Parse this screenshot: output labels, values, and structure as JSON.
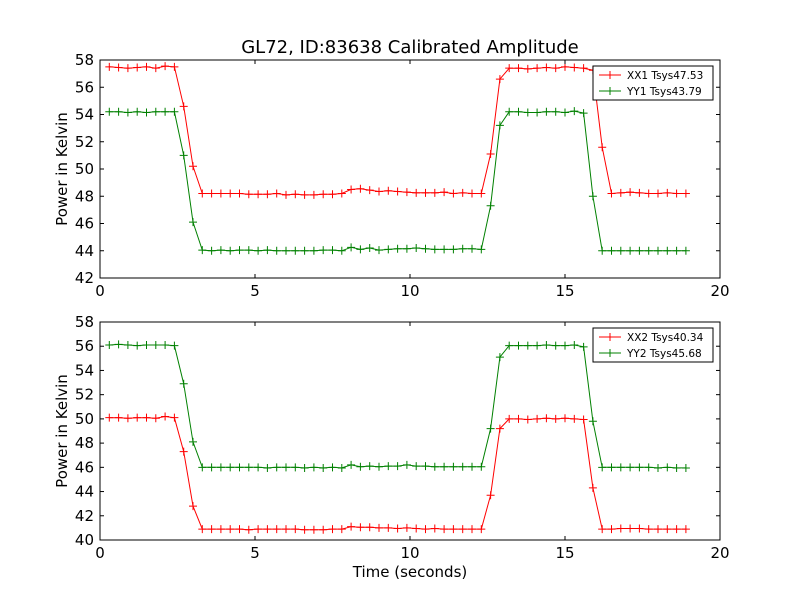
{
  "figure": {
    "title": "GL72, ID:83638 Calibrated Amplitude",
    "xlabel": "Time (seconds)"
  },
  "chart_data": [
    {
      "type": "line",
      "title": "GL72, ID:83638 Calibrated Amplitude",
      "xlabel": "",
      "ylabel": "Power in Kelvin",
      "xlim": [
        0,
        20
      ],
      "ylim": [
        42,
        58
      ],
      "xticks": [
        0,
        5,
        10,
        15,
        20
      ],
      "yticks": [
        42,
        44,
        46,
        48,
        50,
        52,
        54,
        56,
        58
      ],
      "grid": false,
      "legend_position": "top-right",
      "x": [
        0.3,
        0.6,
        0.9,
        1.2,
        1.5,
        1.8,
        2.1,
        2.4,
        2.7,
        3.0,
        3.3,
        3.6,
        3.9,
        4.2,
        4.5,
        4.8,
        5.1,
        5.4,
        5.7,
        6.0,
        6.3,
        6.6,
        6.9,
        7.2,
        7.5,
        7.8,
        8.1,
        8.4,
        8.7,
        9.0,
        9.3,
        9.6,
        9.9,
        10.2,
        10.5,
        10.8,
        11.1,
        11.4,
        11.7,
        12.0,
        12.3,
        12.6,
        12.9,
        13.2,
        13.5,
        13.8,
        14.1,
        14.4,
        14.7,
        15.0,
        15.3,
        15.6,
        15.9,
        16.2,
        16.5,
        16.8,
        17.1,
        17.4,
        17.7,
        18.0,
        18.3,
        18.6,
        18.9
      ],
      "series": [
        {
          "name": "XX1 Tsys47.53",
          "color": "#ff0000",
          "values": [
            57.5,
            57.45,
            57.4,
            57.45,
            57.5,
            57.4,
            57.55,
            57.5,
            54.6,
            50.2,
            48.2,
            48.2,
            48.2,
            48.2,
            48.2,
            48.15,
            48.15,
            48.15,
            48.2,
            48.1,
            48.15,
            48.1,
            48.1,
            48.15,
            48.15,
            48.2,
            48.5,
            48.55,
            48.45,
            48.35,
            48.4,
            48.35,
            48.3,
            48.25,
            48.25,
            48.25,
            48.3,
            48.2,
            48.25,
            48.2,
            48.2,
            51.1,
            56.6,
            57.4,
            57.4,
            57.35,
            57.4,
            57.45,
            57.4,
            57.5,
            57.45,
            57.4,
            57.25,
            51.6,
            48.2,
            48.25,
            48.3,
            48.25,
            48.2,
            48.2,
            48.25,
            48.2,
            48.2
          ]
        },
        {
          "name": "YY1 Tsys43.79",
          "color": "#008000",
          "values": [
            54.2,
            54.2,
            54.15,
            54.2,
            54.15,
            54.2,
            54.2,
            54.2,
            51.0,
            46.1,
            44.05,
            44.0,
            44.05,
            44.0,
            44.05,
            44.05,
            44.0,
            44.05,
            44.0,
            44.0,
            44.0,
            44.0,
            44.0,
            44.05,
            44.05,
            44.0,
            44.25,
            44.1,
            44.2,
            44.05,
            44.1,
            44.15,
            44.15,
            44.2,
            44.15,
            44.1,
            44.1,
            44.1,
            44.15,
            44.15,
            44.1,
            47.3,
            53.2,
            54.2,
            54.2,
            54.15,
            54.15,
            54.2,
            54.2,
            54.15,
            54.25,
            54.1,
            48.0,
            44.0,
            44.0,
            44.0,
            44.0,
            44.0,
            44.0,
            44.0,
            44.0,
            44.0,
            44.0
          ]
        }
      ]
    },
    {
      "type": "line",
      "title": "",
      "xlabel": "Time (seconds)",
      "ylabel": "Power in Kelvin",
      "xlim": [
        0,
        20
      ],
      "ylim": [
        40,
        58
      ],
      "xticks": [
        0,
        5,
        10,
        15,
        20
      ],
      "yticks": [
        40,
        42,
        44,
        46,
        48,
        50,
        52,
        54,
        56,
        58
      ],
      "grid": false,
      "legend_position": "top-right",
      "x": [
        0.3,
        0.6,
        0.9,
        1.2,
        1.5,
        1.8,
        2.1,
        2.4,
        2.7,
        3.0,
        3.3,
        3.6,
        3.9,
        4.2,
        4.5,
        4.8,
        5.1,
        5.4,
        5.7,
        6.0,
        6.3,
        6.6,
        6.9,
        7.2,
        7.5,
        7.8,
        8.1,
        8.4,
        8.7,
        9.0,
        9.3,
        9.6,
        9.9,
        10.2,
        10.5,
        10.8,
        11.1,
        11.4,
        11.7,
        12.0,
        12.3,
        12.6,
        12.9,
        13.2,
        13.5,
        13.8,
        14.1,
        14.4,
        14.7,
        15.0,
        15.3,
        15.6,
        15.9,
        16.2,
        16.5,
        16.8,
        17.1,
        17.4,
        17.7,
        18.0,
        18.3,
        18.6,
        18.9
      ],
      "series": [
        {
          "name": "XX2 Tsys40.34",
          "color": "#ff0000",
          "values": [
            50.1,
            50.1,
            50.05,
            50.1,
            50.1,
            50.05,
            50.2,
            50.1,
            47.3,
            42.8,
            40.9,
            40.9,
            40.9,
            40.9,
            40.9,
            40.85,
            40.9,
            40.9,
            40.9,
            40.9,
            40.9,
            40.85,
            40.85,
            40.85,
            40.9,
            40.9,
            41.1,
            41.05,
            41.05,
            41.0,
            41.0,
            40.95,
            41.0,
            40.95,
            40.9,
            40.95,
            40.9,
            40.9,
            40.9,
            40.9,
            40.9,
            43.7,
            49.2,
            50.0,
            50.0,
            49.95,
            50.0,
            50.05,
            50.0,
            50.05,
            50.0,
            49.95,
            44.3,
            40.9,
            40.9,
            40.95,
            40.95,
            40.95,
            40.9,
            40.9,
            40.9,
            40.9,
            40.9
          ]
        },
        {
          "name": "YY2 Tsys45.68",
          "color": "#008000",
          "values": [
            56.1,
            56.15,
            56.1,
            56.05,
            56.1,
            56.1,
            56.1,
            56.05,
            52.9,
            48.1,
            46.0,
            46.0,
            46.0,
            46.0,
            46.0,
            46.0,
            46.0,
            45.95,
            46.0,
            46.0,
            46.0,
            45.95,
            46.0,
            45.95,
            46.0,
            45.95,
            46.2,
            46.05,
            46.1,
            46.05,
            46.1,
            46.1,
            46.2,
            46.1,
            46.1,
            46.05,
            46.05,
            46.05,
            46.05,
            46.05,
            46.05,
            49.2,
            55.1,
            56.05,
            56.05,
            56.05,
            56.05,
            56.1,
            56.05,
            56.05,
            56.1,
            55.95,
            49.8,
            46.0,
            46.0,
            46.0,
            46.0,
            46.0,
            46.0,
            45.95,
            46.0,
            45.95,
            45.95
          ]
        }
      ]
    }
  ]
}
